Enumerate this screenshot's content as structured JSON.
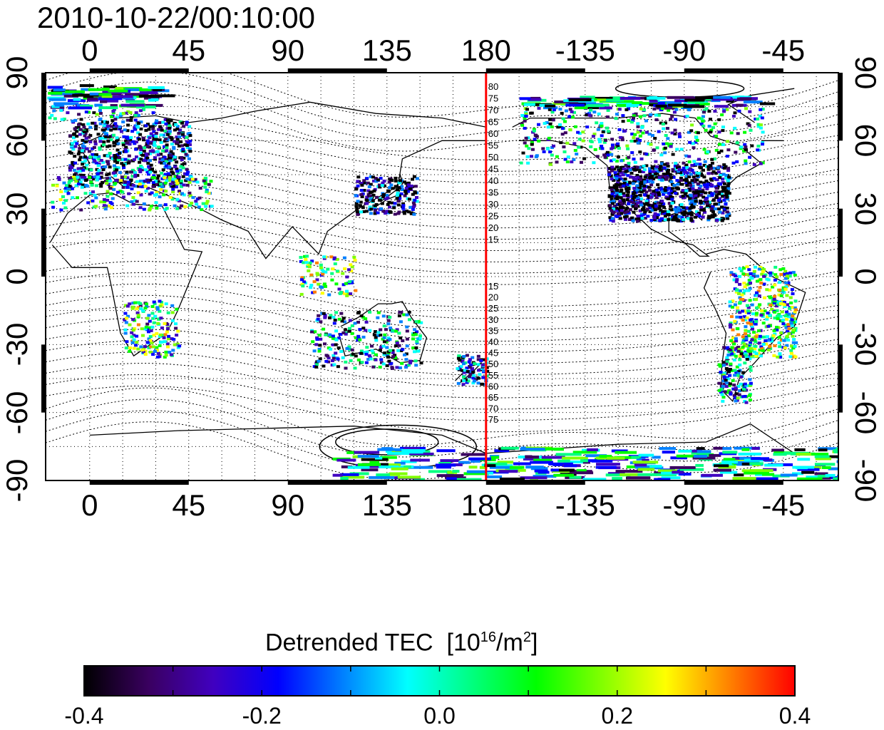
{
  "title": "2010-10-22/00:10:00",
  "map": {
    "x_ticks_top": [
      "0",
      "45",
      "90",
      "135",
      "180",
      "-135",
      "-90",
      "-45"
    ],
    "x_ticks_bottom": [
      "0",
      "45",
      "90",
      "135",
      "180",
      "-135",
      "-90",
      "-45"
    ],
    "y_ticks_left": [
      "90",
      "60",
      "30",
      "0",
      "-30",
      "-60",
      "-90"
    ],
    "y_ticks_right": [
      "90",
      "60",
      "30",
      "0",
      "-30",
      "-60",
      "-90"
    ],
    "longitude_range": [
      -20,
      340
    ],
    "latitude_range": [
      -90,
      90
    ],
    "grid": true,
    "marker_longitude": 180,
    "marker_color": "#ff0000",
    "marker_labels_north": [
      "80",
      "75",
      "70",
      "65",
      "60",
      "55",
      "50",
      "45",
      "40",
      "35",
      "30",
      "25",
      "20",
      "15"
    ],
    "marker_labels_south": [
      "15",
      "20",
      "25",
      "30",
      "35",
      "40",
      "45",
      "50",
      "55",
      "60",
      "65",
      "70",
      "75"
    ]
  },
  "colorbar": {
    "title": "Detrended TEC",
    "unit_base": "[10",
    "unit_exp": "16",
    "unit_mid": "/m",
    "unit_exp2": "2",
    "unit_end": "]",
    "min": -0.4,
    "max": 0.4,
    "ticks": [
      "-0.4",
      "-0.2",
      "0.0",
      "0.2",
      "0.4"
    ],
    "colors": [
      "#000000",
      "#3a0060",
      "#4000c0",
      "#0000ff",
      "#0080ff",
      "#00ffff",
      "#00ff80",
      "#00ff00",
      "#80ff00",
      "#ffff00",
      "#ff8000",
      "#ff0000"
    ]
  }
}
